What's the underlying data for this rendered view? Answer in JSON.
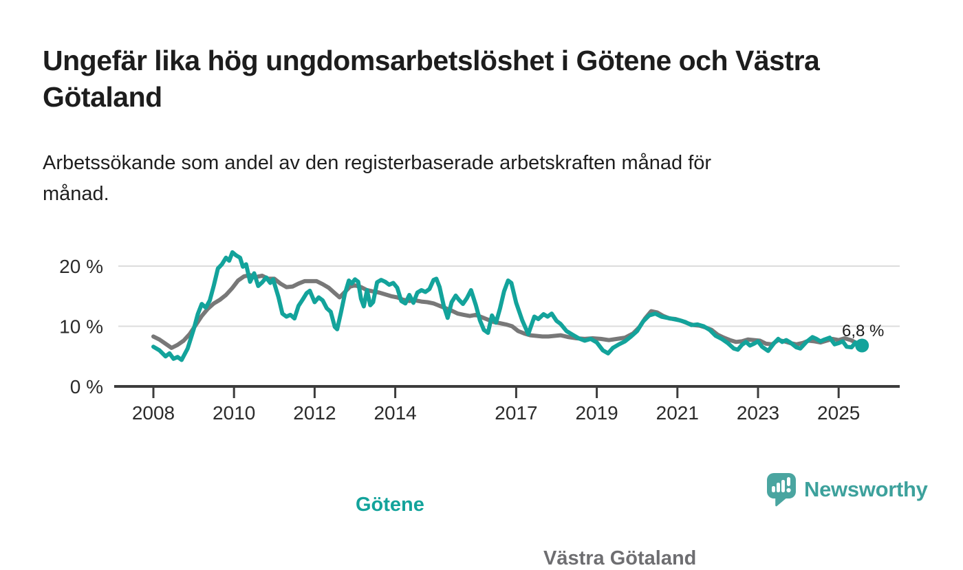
{
  "header": {
    "title_line1": "Ungefär lika hög ungdomsarbetslöshet i Götene och Västra",
    "title_line2": "Götaland",
    "subtitle_line1": "Arbetssökande som andel av den registerbaserade arbetskraften månad för",
    "subtitle_line2": "månad."
  },
  "footer": {
    "brand": "Newsworthy"
  },
  "colors": {
    "gotene_line": "#13a39b",
    "vastra_gotaland_line": "#787878",
    "vg_label_text": "#6e6e71",
    "grid": "#dcdcdc",
    "axis": "#3c3c3c",
    "tick_text": "#2b2b2b",
    "logo_teal": "#4aa5a0"
  },
  "chart_data": {
    "type": "line",
    "unit": "%",
    "x_range": [
      2008,
      2025.58
    ],
    "ylim": [
      0,
      23
    ],
    "grid": "horizontal-only",
    "legend_position": "inline-labels",
    "y_axis": {
      "ticks": [
        {
          "value": 0,
          "label": "0 %"
        },
        {
          "value": 10,
          "label": "10 %"
        },
        {
          "value": 20,
          "label": "20 %"
        }
      ]
    },
    "x_axis": {
      "ticks": [
        {
          "value": 2008,
          "label": "2008"
        },
        {
          "value": 2010,
          "label": "2010"
        },
        {
          "value": 2012,
          "label": "2012"
        },
        {
          "value": 2014,
          "label": "2014"
        },
        {
          "value": 2017,
          "label": "2017"
        },
        {
          "value": 2019,
          "label": "2019"
        },
        {
          "value": 2021,
          "label": "2021"
        },
        {
          "value": 2023,
          "label": "2023"
        },
        {
          "value": 2025,
          "label": "2025"
        }
      ]
    },
    "endpoint": {
      "series": "Götene",
      "label": "6,8 %",
      "value": 6.8,
      "x": 2025.58
    },
    "series": [
      {
        "name": "Västra Götaland",
        "label": "Västra Götaland",
        "color": "#787878",
        "points": [
          [
            2008.0,
            8.3
          ],
          [
            2008.15,
            7.8
          ],
          [
            2008.3,
            7.1
          ],
          [
            2008.45,
            6.4
          ],
          [
            2008.6,
            6.9
          ],
          [
            2008.75,
            7.6
          ],
          [
            2008.9,
            8.7
          ],
          [
            2009.05,
            10.2
          ],
          [
            2009.2,
            11.7
          ],
          [
            2009.35,
            12.9
          ],
          [
            2009.5,
            13.8
          ],
          [
            2009.65,
            14.4
          ],
          [
            2009.8,
            15.2
          ],
          [
            2009.95,
            16.3
          ],
          [
            2010.1,
            17.6
          ],
          [
            2010.25,
            18.3
          ],
          [
            2010.4,
            18.5
          ],
          [
            2010.55,
            18.2
          ],
          [
            2010.7,
            18.4
          ],
          [
            2010.85,
            17.9
          ],
          [
            2011.0,
            17.9
          ],
          [
            2011.15,
            17.1
          ],
          [
            2011.3,
            16.5
          ],
          [
            2011.45,
            16.6
          ],
          [
            2011.6,
            17.1
          ],
          [
            2011.75,
            17.5
          ],
          [
            2011.9,
            17.5
          ],
          [
            2012.05,
            17.5
          ],
          [
            2012.2,
            17.0
          ],
          [
            2012.35,
            16.4
          ],
          [
            2012.5,
            15.5
          ],
          [
            2012.62,
            14.8
          ],
          [
            2012.75,
            15.7
          ],
          [
            2012.88,
            16.6
          ],
          [
            2013.0,
            16.8
          ],
          [
            2013.15,
            16.5
          ],
          [
            2013.3,
            16.0
          ],
          [
            2013.45,
            15.8
          ],
          [
            2013.6,
            15.6
          ],
          [
            2013.75,
            15.3
          ],
          [
            2013.9,
            15.0
          ],
          [
            2014.05,
            14.8
          ],
          [
            2014.2,
            14.4
          ],
          [
            2014.35,
            14.2
          ],
          [
            2014.5,
            14.3
          ],
          [
            2014.65,
            14.1
          ],
          [
            2014.8,
            14.0
          ],
          [
            2014.95,
            13.8
          ],
          [
            2015.1,
            13.4
          ],
          [
            2015.25,
            13.0
          ],
          [
            2015.4,
            12.6
          ],
          [
            2015.55,
            12.1
          ],
          [
            2015.7,
            11.9
          ],
          [
            2015.85,
            11.7
          ],
          [
            2016.0,
            11.9
          ],
          [
            2016.15,
            11.5
          ],
          [
            2016.3,
            11.1
          ],
          [
            2016.45,
            10.7
          ],
          [
            2016.6,
            10.5
          ],
          [
            2016.75,
            10.3
          ],
          [
            2016.9,
            10.0
          ],
          [
            2017.05,
            9.2
          ],
          [
            2017.2,
            8.8
          ],
          [
            2017.35,
            8.5
          ],
          [
            2017.5,
            8.4
          ],
          [
            2017.65,
            8.3
          ],
          [
            2017.8,
            8.3
          ],
          [
            2017.95,
            8.4
          ],
          [
            2018.1,
            8.5
          ],
          [
            2018.3,
            8.2
          ],
          [
            2018.5,
            8.0
          ],
          [
            2018.7,
            7.9
          ],
          [
            2018.9,
            8.0
          ],
          [
            2019.1,
            7.9
          ],
          [
            2019.3,
            7.7
          ],
          [
            2019.5,
            7.9
          ],
          [
            2019.7,
            8.1
          ],
          [
            2019.9,
            8.8
          ],
          [
            2020.05,
            9.8
          ],
          [
            2020.2,
            11.3
          ],
          [
            2020.35,
            12.5
          ],
          [
            2020.5,
            12.3
          ],
          [
            2020.65,
            11.7
          ],
          [
            2020.8,
            11.3
          ],
          [
            2020.95,
            11.2
          ],
          [
            2021.1,
            10.9
          ],
          [
            2021.25,
            10.5
          ],
          [
            2021.4,
            10.2
          ],
          [
            2021.55,
            10.1
          ],
          [
            2021.7,
            9.8
          ],
          [
            2021.85,
            9.4
          ],
          [
            2022.0,
            8.6
          ],
          [
            2022.15,
            8.1
          ],
          [
            2022.3,
            7.7
          ],
          [
            2022.45,
            7.4
          ],
          [
            2022.6,
            7.5
          ],
          [
            2022.75,
            7.8
          ],
          [
            2022.9,
            7.7
          ],
          [
            2023.05,
            7.6
          ],
          [
            2023.2,
            7.1
          ],
          [
            2023.35,
            7.0
          ],
          [
            2023.5,
            7.7
          ],
          [
            2023.65,
            7.5
          ],
          [
            2023.8,
            7.2
          ],
          [
            2023.95,
            7.0
          ],
          [
            2024.1,
            7.2
          ],
          [
            2024.25,
            7.6
          ],
          [
            2024.4,
            7.5
          ],
          [
            2024.55,
            7.3
          ],
          [
            2024.7,
            7.6
          ],
          [
            2024.85,
            7.9
          ],
          [
            2025.0,
            7.7
          ],
          [
            2025.15,
            8.0
          ],
          [
            2025.3,
            7.7
          ],
          [
            2025.45,
            7.2
          ],
          [
            2025.58,
            7.3
          ]
        ]
      },
      {
        "name": "Götene",
        "label": "Götene",
        "color": "#13a39b",
        "points": [
          [
            2008.0,
            6.6
          ],
          [
            2008.15,
            6.0
          ],
          [
            2008.3,
            5.0
          ],
          [
            2008.4,
            5.5
          ],
          [
            2008.5,
            4.6
          ],
          [
            2008.6,
            4.9
          ],
          [
            2008.7,
            4.4
          ],
          [
            2008.85,
            6.3
          ],
          [
            2009.0,
            9.5
          ],
          [
            2009.1,
            12.0
          ],
          [
            2009.2,
            13.7
          ],
          [
            2009.3,
            13.1
          ],
          [
            2009.4,
            14.3
          ],
          [
            2009.5,
            16.8
          ],
          [
            2009.6,
            19.6
          ],
          [
            2009.7,
            20.3
          ],
          [
            2009.8,
            21.4
          ],
          [
            2009.88,
            20.9
          ],
          [
            2009.96,
            22.3
          ],
          [
            2010.05,
            21.8
          ],
          [
            2010.15,
            21.4
          ],
          [
            2010.22,
            19.9
          ],
          [
            2010.3,
            20.3
          ],
          [
            2010.4,
            17.4
          ],
          [
            2010.5,
            18.8
          ],
          [
            2010.6,
            16.7
          ],
          [
            2010.7,
            17.3
          ],
          [
            2010.8,
            18.1
          ],
          [
            2010.9,
            17.2
          ],
          [
            2010.97,
            17.8
          ],
          [
            2011.1,
            14.9
          ],
          [
            2011.2,
            12.1
          ],
          [
            2011.3,
            11.6
          ],
          [
            2011.4,
            11.9
          ],
          [
            2011.5,
            11.3
          ],
          [
            2011.6,
            13.4
          ],
          [
            2011.7,
            14.4
          ],
          [
            2011.8,
            15.5
          ],
          [
            2011.88,
            15.9
          ],
          [
            2012.0,
            14.0
          ],
          [
            2012.1,
            14.8
          ],
          [
            2012.2,
            14.3
          ],
          [
            2012.3,
            13.0
          ],
          [
            2012.4,
            12.4
          ],
          [
            2012.5,
            9.9
          ],
          [
            2012.56,
            9.5
          ],
          [
            2012.65,
            12.2
          ],
          [
            2012.75,
            15.4
          ],
          [
            2012.85,
            17.6
          ],
          [
            2012.92,
            17.1
          ],
          [
            2013.0,
            17.8
          ],
          [
            2013.08,
            17.4
          ],
          [
            2013.15,
            14.6
          ],
          [
            2013.22,
            13.3
          ],
          [
            2013.3,
            16.0
          ],
          [
            2013.38,
            13.5
          ],
          [
            2013.45,
            14.0
          ],
          [
            2013.55,
            17.3
          ],
          [
            2013.65,
            17.7
          ],
          [
            2013.75,
            17.4
          ],
          [
            2013.85,
            16.9
          ],
          [
            2013.95,
            17.2
          ],
          [
            2014.05,
            16.4
          ],
          [
            2014.15,
            14.2
          ],
          [
            2014.25,
            13.8
          ],
          [
            2014.35,
            15.2
          ],
          [
            2014.45,
            13.9
          ],
          [
            2014.55,
            15.6
          ],
          [
            2014.65,
            16.0
          ],
          [
            2014.75,
            15.7
          ],
          [
            2014.85,
            16.2
          ],
          [
            2014.95,
            17.7
          ],
          [
            2015.02,
            17.9
          ],
          [
            2015.1,
            16.5
          ],
          [
            2015.2,
            13.5
          ],
          [
            2015.3,
            11.4
          ],
          [
            2015.4,
            14.0
          ],
          [
            2015.5,
            15.1
          ],
          [
            2015.58,
            14.4
          ],
          [
            2015.68,
            13.7
          ],
          [
            2015.78,
            14.7
          ],
          [
            2015.88,
            16.0
          ],
          [
            2016.0,
            13.5
          ],
          [
            2016.1,
            11.0
          ],
          [
            2016.2,
            9.4
          ],
          [
            2016.3,
            8.9
          ],
          [
            2016.4,
            11.8
          ],
          [
            2016.5,
            10.6
          ],
          [
            2016.6,
            13.0
          ],
          [
            2016.7,
            15.8
          ],
          [
            2016.8,
            17.6
          ],
          [
            2016.88,
            17.2
          ],
          [
            2017.0,
            13.9
          ],
          [
            2017.15,
            11.0
          ],
          [
            2017.3,
            8.7
          ],
          [
            2017.45,
            11.6
          ],
          [
            2017.55,
            11.2
          ],
          [
            2017.68,
            12.0
          ],
          [
            2017.78,
            11.6
          ],
          [
            2017.88,
            12.1
          ],
          [
            2018.0,
            10.9
          ],
          [
            2018.1,
            10.4
          ],
          [
            2018.25,
            9.2
          ],
          [
            2018.4,
            8.6
          ],
          [
            2018.55,
            8.0
          ],
          [
            2018.7,
            7.6
          ],
          [
            2018.85,
            7.9
          ],
          [
            2019.0,
            7.3
          ],
          [
            2019.15,
            6.0
          ],
          [
            2019.28,
            5.5
          ],
          [
            2019.4,
            6.4
          ],
          [
            2019.55,
            7.0
          ],
          [
            2019.7,
            7.5
          ],
          [
            2019.85,
            8.3
          ],
          [
            2020.0,
            9.2
          ],
          [
            2020.15,
            10.8
          ],
          [
            2020.3,
            11.8
          ],
          [
            2020.45,
            12.1
          ],
          [
            2020.6,
            11.6
          ],
          [
            2020.75,
            11.4
          ],
          [
            2020.9,
            11.2
          ],
          [
            2021.05,
            11.0
          ],
          [
            2021.2,
            10.7
          ],
          [
            2021.35,
            10.2
          ],
          [
            2021.5,
            10.3
          ],
          [
            2021.65,
            10.0
          ],
          [
            2021.8,
            9.4
          ],
          [
            2021.95,
            8.4
          ],
          [
            2022.1,
            7.9
          ],
          [
            2022.25,
            7.2
          ],
          [
            2022.4,
            6.3
          ],
          [
            2022.5,
            6.1
          ],
          [
            2022.6,
            6.9
          ],
          [
            2022.7,
            7.4
          ],
          [
            2022.8,
            6.8
          ],
          [
            2022.9,
            7.1
          ],
          [
            2023.0,
            7.5
          ],
          [
            2023.1,
            6.6
          ],
          [
            2023.25,
            5.9
          ],
          [
            2023.4,
            7.2
          ],
          [
            2023.5,
            7.9
          ],
          [
            2023.6,
            7.4
          ],
          [
            2023.7,
            7.7
          ],
          [
            2023.8,
            7.3
          ],
          [
            2023.95,
            6.5
          ],
          [
            2024.05,
            6.3
          ],
          [
            2024.2,
            7.4
          ],
          [
            2024.35,
            8.2
          ],
          [
            2024.45,
            7.9
          ],
          [
            2024.55,
            7.5
          ],
          [
            2024.65,
            7.8
          ],
          [
            2024.78,
            8.1
          ],
          [
            2024.9,
            7.0
          ],
          [
            2025.0,
            7.2
          ],
          [
            2025.1,
            7.5
          ],
          [
            2025.2,
            6.6
          ],
          [
            2025.32,
            6.5
          ],
          [
            2025.42,
            7.3
          ],
          [
            2025.5,
            7.0
          ],
          [
            2025.58,
            6.8
          ]
        ]
      }
    ]
  }
}
